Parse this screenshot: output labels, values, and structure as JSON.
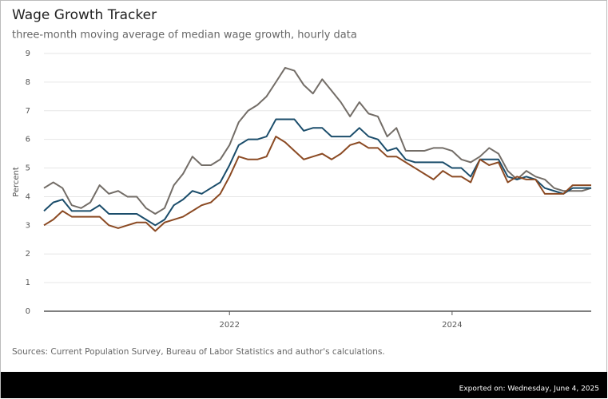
{
  "chart_data": {
    "type": "line",
    "title": "Wage Growth Tracker",
    "subtitle": "three-month moving average of median wage growth, hourly data",
    "y_label": "Percent",
    "source": "Sources: Current Population Survey, Bureau of Labor Statistics and author's calculations.",
    "export_note": "Exported on: Wednesday, June 4, 2025",
    "x": [
      2020.333,
      2020.417,
      2020.5,
      2020.583,
      2020.667,
      2020.75,
      2020.833,
      2020.917,
      2021,
      2021.083,
      2021.167,
      2021.25,
      2021.333,
      2021.417,
      2021.5,
      2021.583,
      2021.667,
      2021.75,
      2021.833,
      2021.917,
      2022,
      2022.083,
      2022.167,
      2022.25,
      2022.333,
      2022.417,
      2022.5,
      2022.583,
      2022.667,
      2022.75,
      2022.833,
      2022.917,
      2023,
      2023.083,
      2023.167,
      2023.25,
      2023.333,
      2023.417,
      2023.5,
      2023.583,
      2023.667,
      2023.75,
      2023.833,
      2023.917,
      2024,
      2024.083,
      2024.167,
      2024.25,
      2024.333,
      2024.417,
      2024.5,
      2024.583,
      2024.667,
      2024.75,
      2024.833,
      2024.917,
      2025,
      2025.083,
      2025.167,
      2025.25
    ],
    "series": [
      {
        "color": "#736d67",
        "values": [
          4.3,
          4.5,
          4.3,
          3.7,
          3.6,
          3.8,
          4.4,
          4.1,
          4.2,
          4.0,
          4.0,
          3.6,
          3.4,
          3.6,
          4.4,
          4.8,
          5.4,
          5.1,
          5.1,
          5.3,
          5.8,
          6.6,
          7.0,
          7.2,
          7.5,
          8.0,
          8.5,
          8.4,
          7.9,
          7.6,
          8.1,
          7.7,
          7.3,
          6.8,
          7.3,
          6.9,
          6.8,
          6.1,
          6.4,
          5.6,
          5.6,
          5.6,
          5.7,
          5.7,
          5.6,
          5.3,
          5.2,
          5.4,
          5.7,
          5.5,
          4.9,
          4.6,
          4.9,
          4.7,
          4.6,
          4.3,
          4.2,
          4.2,
          4.2,
          4.3
        ]
      },
      {
        "color": "#1b4d6b",
        "values": [
          3.5,
          3.8,
          3.9,
          3.5,
          3.5,
          3.5,
          3.7,
          3.4,
          3.4,
          3.4,
          3.4,
          3.2,
          3.0,
          3.2,
          3.7,
          3.9,
          4.2,
          4.1,
          4.3,
          4.5,
          5.1,
          5.8,
          6.0,
          6.0,
          6.1,
          6.7,
          6.7,
          6.7,
          6.3,
          6.4,
          6.4,
          6.1,
          6.1,
          6.1,
          6.4,
          6.1,
          6.0,
          5.6,
          5.7,
          5.3,
          5.2,
          5.2,
          5.2,
          5.2,
          5.0,
          5.0,
          4.7,
          5.3,
          5.3,
          5.3,
          4.7,
          4.6,
          4.7,
          4.6,
          4.3,
          4.2,
          4.1,
          4.3,
          4.3,
          4.3
        ]
      },
      {
        "color": "#8b4a23",
        "values": [
          3.0,
          3.2,
          3.5,
          3.3,
          3.3,
          3.3,
          3.3,
          3.0,
          2.9,
          3.0,
          3.1,
          3.1,
          2.8,
          3.1,
          3.2,
          3.3,
          3.5,
          3.7,
          3.8,
          4.1,
          4.7,
          5.4,
          5.3,
          5.3,
          5.4,
          6.1,
          5.9,
          5.6,
          5.3,
          5.4,
          5.5,
          5.3,
          5.5,
          5.8,
          5.9,
          5.7,
          5.7,
          5.4,
          5.4,
          5.2,
          5.0,
          4.8,
          4.6,
          4.9,
          4.7,
          4.7,
          4.5,
          5.3,
          5.1,
          5.2,
          4.5,
          4.7,
          4.6,
          4.6,
          4.1,
          4.1,
          4.1,
          4.4,
          4.4,
          4.4
        ]
      }
    ],
    "xlim": [
      2020.333,
      2025.25
    ],
    "xticks": [
      2022,
      2024
    ],
    "ylim": [
      0,
      9
    ],
    "yticks": [
      0,
      1,
      2,
      3,
      4,
      5,
      6,
      7,
      8,
      9
    ],
    "grid": true
  }
}
